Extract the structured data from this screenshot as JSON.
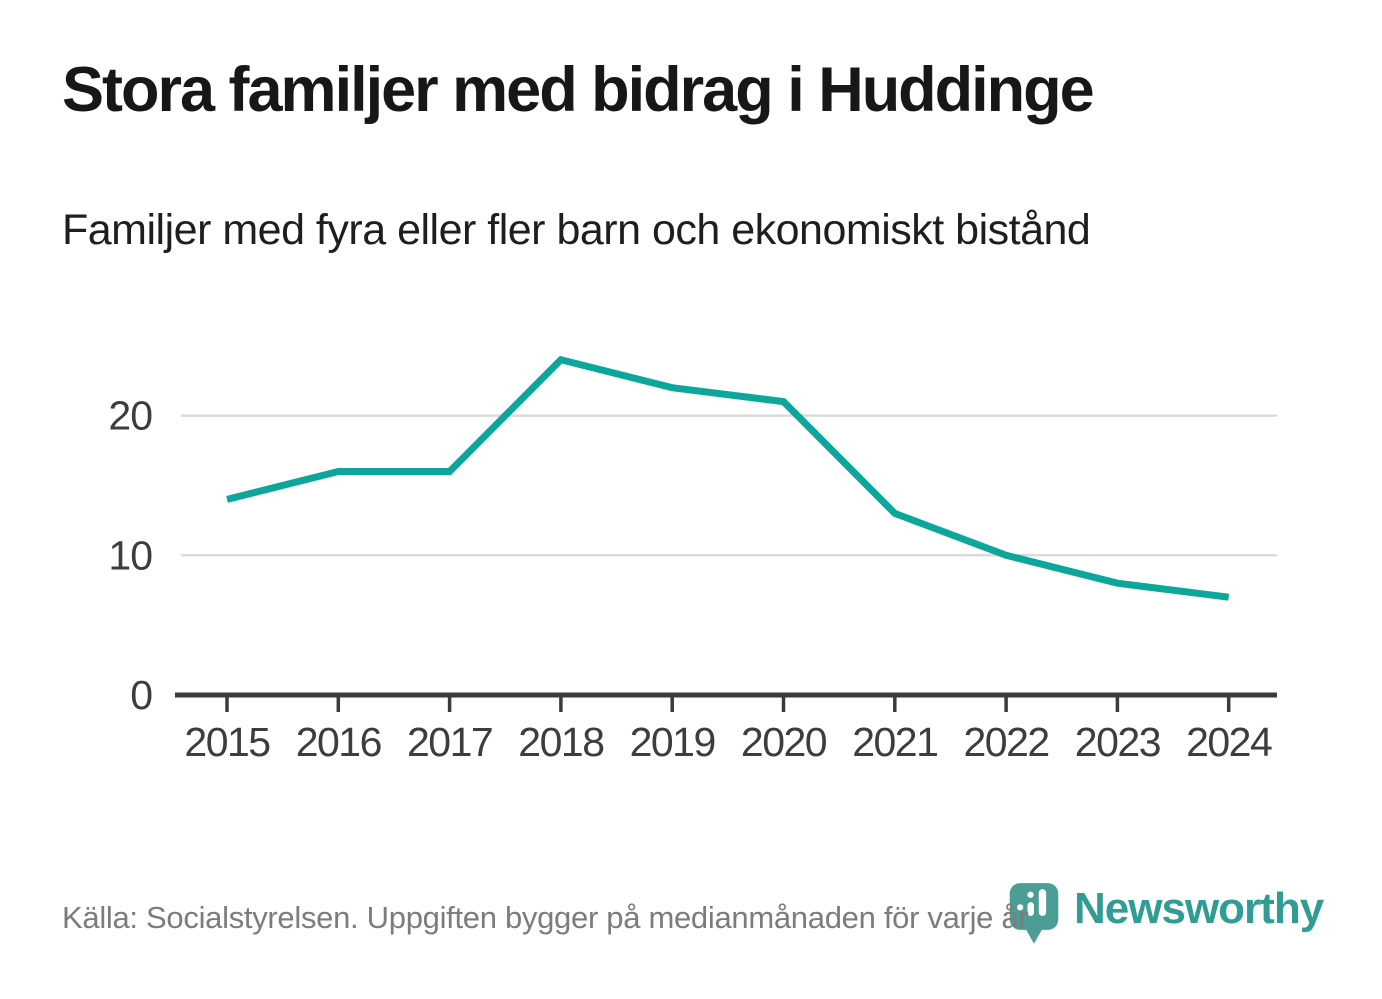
{
  "header": {
    "title": "Stora familjer med bidrag i Huddinge",
    "subtitle": "Familjer med fyra eller fler barn och ekonomiskt bistånd"
  },
  "footer": {
    "source": "Källa: Socialstyrelsen. Uppgiften bygger på medianmånaden för varje år",
    "brand_name": "Newsworthy",
    "brand_icon": "newsworthy-pin-barchart-icon"
  },
  "colors": {
    "line": "#0CA69A",
    "grid": "#DBDBDB",
    "axis": "#3B3B3B",
    "tick_label": "#3D3D3D",
    "title": "#171717",
    "footer_text": "#7C7C7C",
    "brand": "#2F9D93",
    "brand_icon": "#4A9E96"
  },
  "chart_data": {
    "type": "line",
    "title": "Stora familjer med bidrag i Huddinge",
    "subtitle": "Familjer med fyra eller fler barn och ekonomiskt bistånd",
    "categories": [
      "2015",
      "2016",
      "2017",
      "2018",
      "2019",
      "2020",
      "2021",
      "2022",
      "2023",
      "2024"
    ],
    "values": [
      14,
      16,
      16,
      24,
      22,
      21,
      13,
      10,
      8,
      7
    ],
    "ylim": [
      0,
      26
    ],
    "yticks": [
      0,
      10,
      20
    ],
    "grid": "horizontal-only",
    "legend": "none",
    "line_color": "#0CA69A",
    "source": "Källa: Socialstyrelsen. Uppgiften bygger på medianmånaden för varje år"
  }
}
